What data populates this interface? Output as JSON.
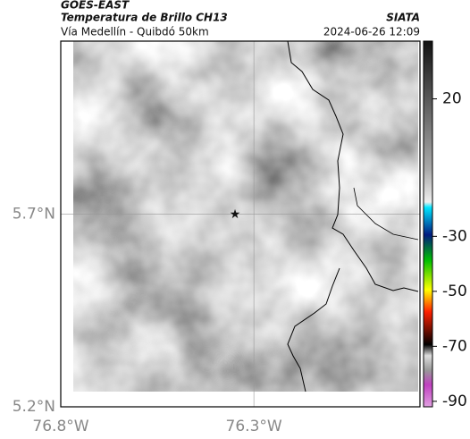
{
  "header": {
    "source": "GOES-EAST",
    "product": "Temperatura de Brillo CH13",
    "org": "SIATA",
    "route": "Vía Medellín - Quibdó 50km",
    "datetime": "2024-06-26 12:09"
  },
  "map": {
    "xlim": [
      -76.8,
      -75.87
    ],
    "ylim": [
      5.2,
      6.15
    ],
    "xticks": [
      {
        "value": -76.8,
        "label": "76.8°W"
      },
      {
        "value": -76.3,
        "label": "76.3°W"
      }
    ],
    "yticks": [
      {
        "value": 5.2,
        "label": "5.2°N"
      },
      {
        "value": 5.7,
        "label": "5.7°N"
      }
    ],
    "grid": true
  },
  "colorbar": {
    "lim": [
      -92,
      41
    ],
    "ticks": [
      20,
      -30,
      -50,
      -70,
      -90
    ]
  }
}
